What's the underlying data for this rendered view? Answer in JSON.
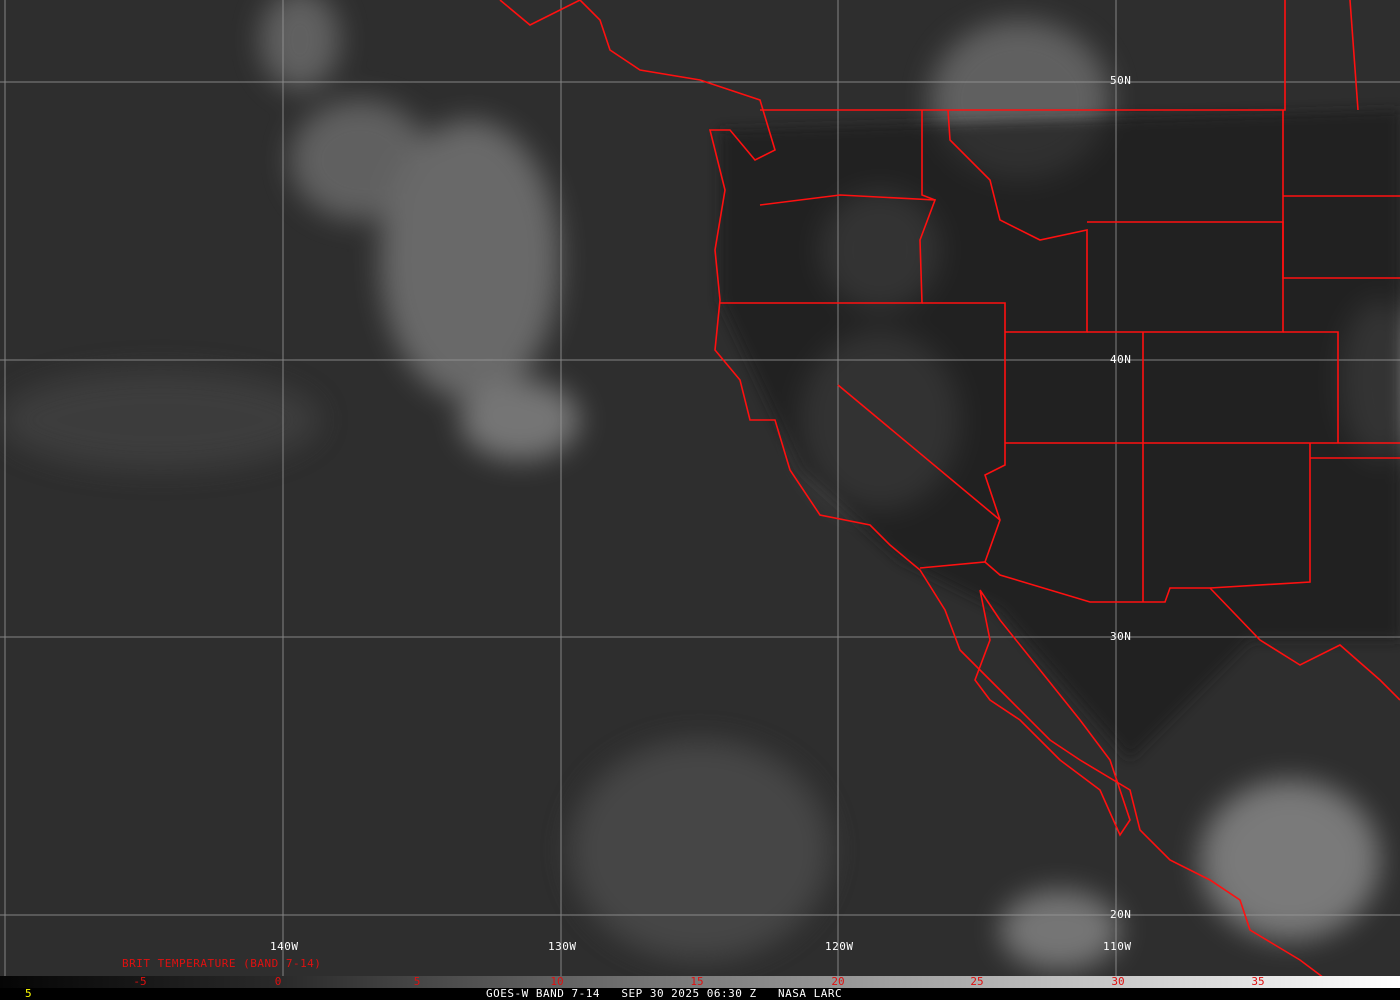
{
  "map": {
    "type": "satellite infrared imagery",
    "colors": {
      "background": "#2e2e2e",
      "borders": "#ff1010",
      "grid": "#9a9a9a",
      "text": "#ffffff",
      "legend_text": "#e01010",
      "footer_left": "#ffff00"
    },
    "grid_labels": {
      "lon": [
        "140W",
        "130W",
        "120W",
        "110W"
      ],
      "lat": [
        "50N",
        "40N",
        "30N",
        "20N"
      ]
    }
  },
  "legend": {
    "title": "BRIT TEMPERATURE (BAND 7-14)",
    "ticks": [
      "-5",
      "0",
      "5",
      "10",
      "15",
      "20",
      "25",
      "30",
      "35"
    ]
  },
  "footer": {
    "left_value": "5",
    "caption": "GOES-W BAND 7-14   SEP 30 2025 06:30 Z   NASA LARC"
  }
}
